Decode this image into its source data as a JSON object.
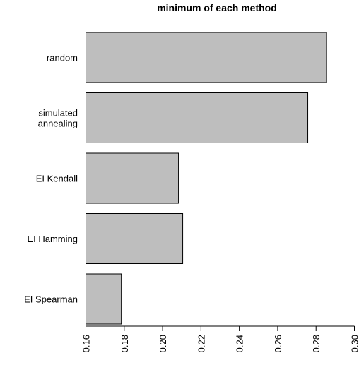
{
  "chart_data": {
    "type": "bar",
    "orientation": "horizontal",
    "title": "minimum of each method",
    "xlabel": "",
    "ylabel": "",
    "categories": [
      [
        "random"
      ],
      [
        "simulated",
        "annealing"
      ],
      [
        "EI Kendall"
      ],
      [
        "EI Hamming"
      ],
      [
        "EI Spearman"
      ]
    ],
    "values": [
      0.2855,
      0.2757,
      0.2083,
      0.2105,
      0.1785
    ],
    "xlim": [
      0.16,
      0.3
    ],
    "xticks": [
      "0.16",
      "0.18",
      "0.20",
      "0.22",
      "0.24",
      "0.26",
      "0.28",
      "0.30"
    ],
    "grid": false,
    "bar_color": "#bebebe",
    "edge_color": "#000000"
  }
}
